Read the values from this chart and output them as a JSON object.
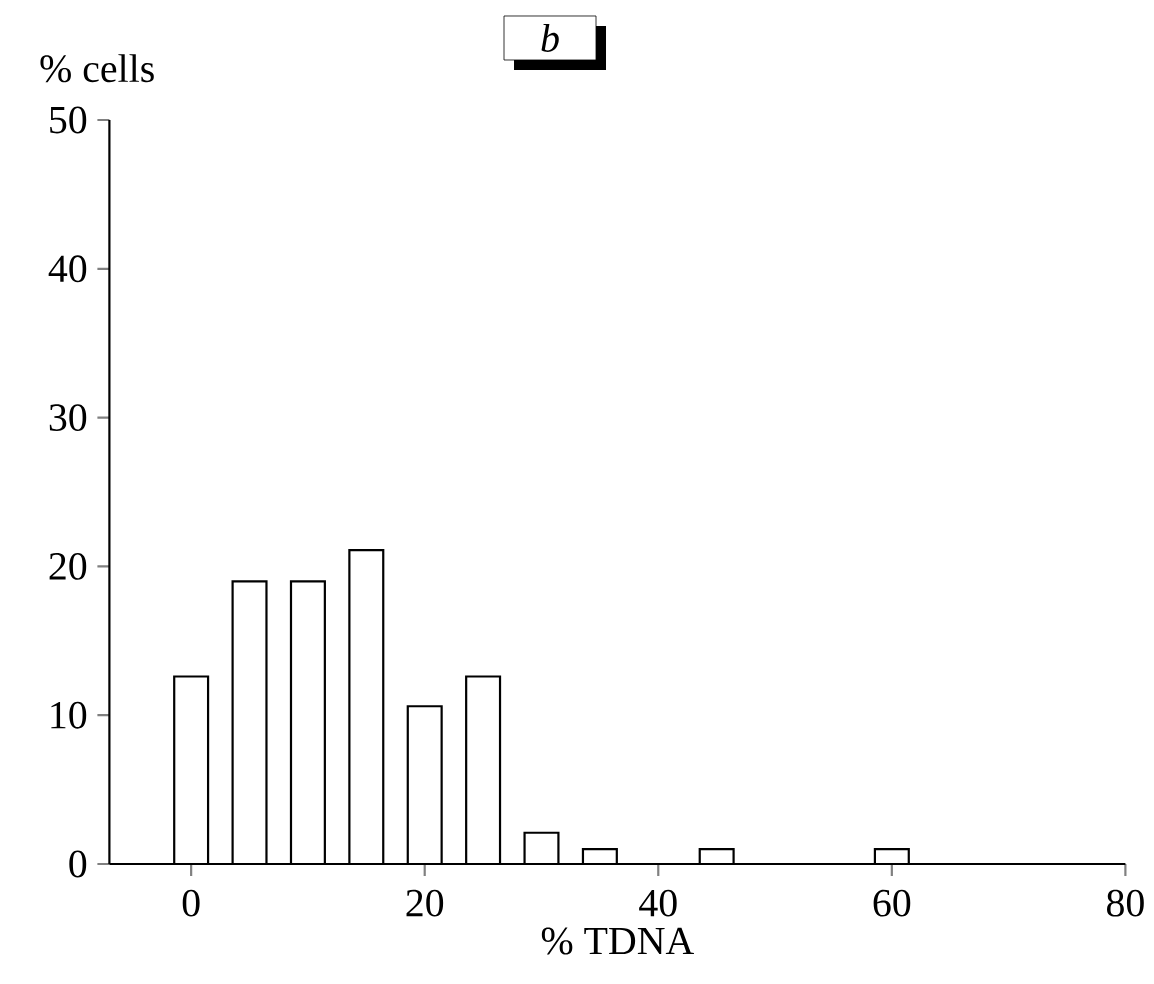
{
  "chart_data": {
    "type": "bar",
    "title": "b",
    "xlabel": "% TDNA",
    "ylabel": "% cells",
    "x": [
      0,
      5,
      10,
      15,
      20,
      25,
      30,
      35,
      45,
      60
    ],
    "values": [
      12.6,
      19,
      19,
      21.1,
      10.6,
      12.6,
      2.1,
      1,
      1,
      1
    ],
    "color": "#ffffff",
    "xlim": [
      -7,
      80
    ],
    "xticks": [
      0,
      20,
      40,
      60,
      80
    ],
    "ylim": [
      0,
      50
    ],
    "yticks": [
      0,
      10,
      20,
      30,
      40,
      50
    ]
  }
}
